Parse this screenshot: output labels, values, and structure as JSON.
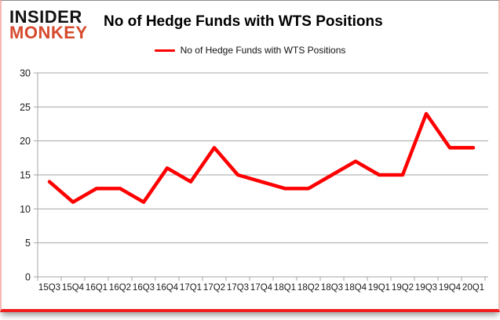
{
  "brand": {
    "line1": "INSIDER",
    "line2": "MONKEY",
    "line1_color": "#111111",
    "line2_color": "#d64a2e"
  },
  "header": {
    "title": "No of Hedge Funds with WTS Positions"
  },
  "legend": {
    "label": "No of Hedge Funds with WTS Positions",
    "marker_color": "#fe0000"
  },
  "colors": {
    "line": "#fe0000",
    "grid": "#a6a6a6",
    "axis": "#a6a6a6",
    "tick_text": "#1a1a1a",
    "card_border_top": "#8c8c8c",
    "card_border_sides": "#f5b8b4",
    "card_border_bottom": "#f01e1e"
  },
  "chart_data": {
    "type": "line",
    "title": "No of Hedge Funds with WTS Positions",
    "categories": [
      "15Q3",
      "15Q4",
      "16Q1",
      "16Q2",
      "16Q3",
      "16Q4",
      "17Q1",
      "17Q2",
      "17Q3",
      "17Q4",
      "18Q1",
      "18Q2",
      "18Q3",
      "18Q4",
      "19Q1",
      "19Q2",
      "19Q3",
      "19Q4",
      "20Q1"
    ],
    "series": [
      {
        "name": "No of Hedge Funds with WTS Positions",
        "color": "#fe0000",
        "values": [
          14,
          11,
          13,
          13,
          11,
          16,
          14,
          19,
          15,
          14,
          13,
          13,
          15,
          17,
          15,
          15,
          24,
          19,
          19
        ]
      }
    ],
    "xlabel": "",
    "ylabel": "",
    "ylim": [
      0,
      30
    ],
    "yticks": [
      0,
      5,
      10,
      15,
      20,
      25,
      30
    ],
    "grid": true,
    "legend_position": "top-center"
  }
}
